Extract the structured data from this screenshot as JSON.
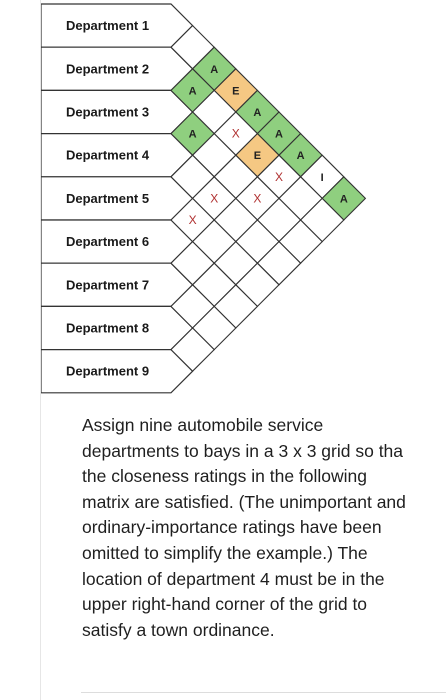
{
  "departments": [
    "Department 1",
    "Department 2",
    "Department 3",
    "Department 4",
    "Department 5",
    "Department 6",
    "Department 7",
    "Department 8",
    "Department 9"
  ],
  "closeness_ratings": [
    {
      "pair": [
        1,
        2
      ],
      "rating": ""
    },
    {
      "pair": [
        1,
        3
      ],
      "rating": "A"
    },
    {
      "pair": [
        1,
        4
      ],
      "rating": "E"
    },
    {
      "pair": [
        1,
        5
      ],
      "rating": "A"
    },
    {
      "pair": [
        1,
        6
      ],
      "rating": "A"
    },
    {
      "pair": [
        1,
        7
      ],
      "rating": "A"
    },
    {
      "pair": [
        1,
        8
      ],
      "rating": "I"
    },
    {
      "pair": [
        1,
        9
      ],
      "rating": "A"
    },
    {
      "pair": [
        2,
        3
      ],
      "rating": "A"
    },
    {
      "pair": [
        2,
        5
      ],
      "rating": "X"
    },
    {
      "pair": [
        2,
        6
      ],
      "rating": "E"
    },
    {
      "pair": [
        2,
        7
      ],
      "rating": "X"
    },
    {
      "pair": [
        3,
        4
      ],
      "rating": "A"
    },
    {
      "pair": [
        3,
        7
      ],
      "rating": "X"
    },
    {
      "pair": [
        4,
        6
      ],
      "rating": "X"
    },
    {
      "pair": [
        5,
        6
      ],
      "rating": "X"
    }
  ],
  "colors": {
    "A": "#8fcf7f",
    "E": "#f5c883",
    "grid_line": "#333333"
  },
  "description": "Assign nine automobile service\ndepartments to bays in a 3 x  3 grid so tha\nthe closeness ratings in the following\nmatrix are satisfied. (The unimportant and\nordinary-importance ratings have been\nomitted to simplify the example.) The\nlocation of department 4 must be in the\nupper right-hand corner of the grid to\nsatisfy a town ordinance."
}
